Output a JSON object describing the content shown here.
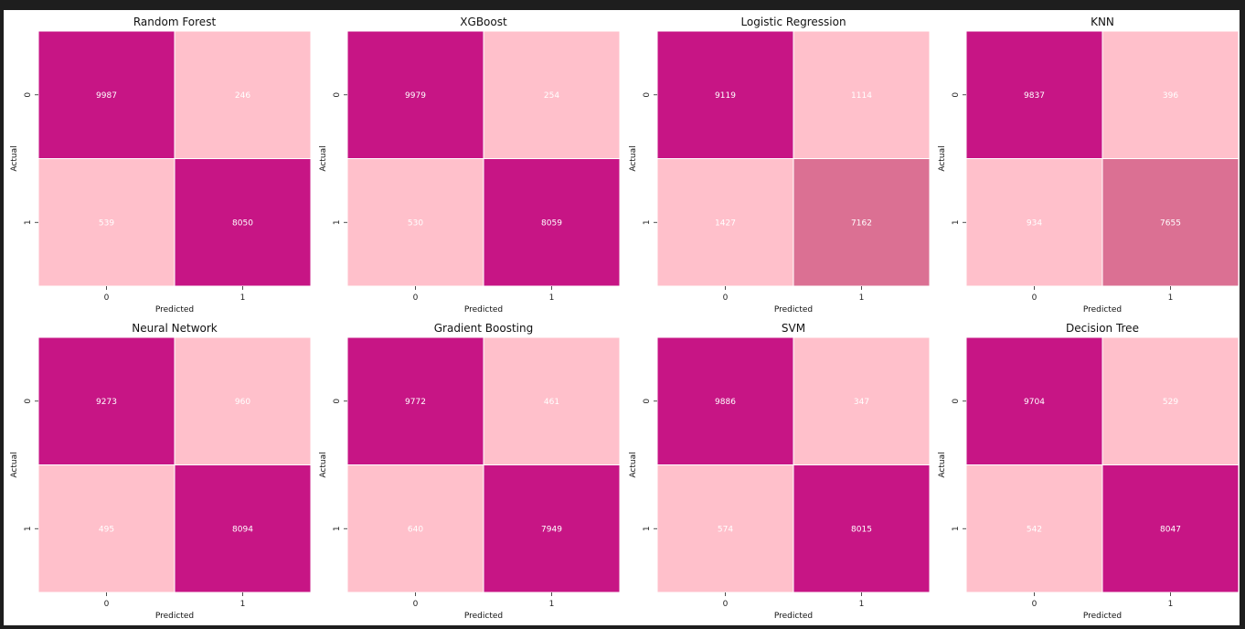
{
  "colors": {
    "dark": "#c71585",
    "light": "#ffc0cb",
    "mid": "#db7093",
    "background": "#ffffff",
    "frame": "#1e1e1e"
  },
  "chart_data": [
    {
      "type": "heatmap",
      "title": "Random Forest",
      "xlabel": "Predicted",
      "ylabel": "Actual",
      "x_ticks": [
        "0",
        "1"
      ],
      "y_ticks": [
        "0",
        "1"
      ],
      "values": [
        [
          9987,
          246
        ],
        [
          539,
          8050
        ]
      ],
      "cell_colors": [
        [
          "#c71585",
          "#ffc0cb"
        ],
        [
          "#ffc0cb",
          "#c71585"
        ]
      ]
    },
    {
      "type": "heatmap",
      "title": "XGBoost",
      "xlabel": "Predicted",
      "ylabel": "Actual",
      "x_ticks": [
        "0",
        "1"
      ],
      "y_ticks": [
        "0",
        "1"
      ],
      "values": [
        [
          9979,
          254
        ],
        [
          530,
          8059
        ]
      ],
      "cell_colors": [
        [
          "#c71585",
          "#ffc0cb"
        ],
        [
          "#ffc0cb",
          "#c71585"
        ]
      ]
    },
    {
      "type": "heatmap",
      "title": "Logistic Regression",
      "xlabel": "Predicted",
      "ylabel": "Actual",
      "x_ticks": [
        "0",
        "1"
      ],
      "y_ticks": [
        "0",
        "1"
      ],
      "values": [
        [
          9119,
          1114
        ],
        [
          1427,
          7162
        ]
      ],
      "cell_colors": [
        [
          "#c71585",
          "#ffc0cb"
        ],
        [
          "#ffc0cb",
          "#db7093"
        ]
      ]
    },
    {
      "type": "heatmap",
      "title": "KNN",
      "xlabel": "Predicted",
      "ylabel": "Actual",
      "x_ticks": [
        "0",
        "1"
      ],
      "y_ticks": [
        "0",
        "1"
      ],
      "values": [
        [
          9837,
          396
        ],
        [
          934,
          7655
        ]
      ],
      "cell_colors": [
        [
          "#c71585",
          "#ffc0cb"
        ],
        [
          "#ffc0cb",
          "#db7093"
        ]
      ]
    },
    {
      "type": "heatmap",
      "title": "Neural Network",
      "xlabel": "Predicted",
      "ylabel": "Actual",
      "x_ticks": [
        "0",
        "1"
      ],
      "y_ticks": [
        "0",
        "1"
      ],
      "values": [
        [
          9273,
          960
        ],
        [
          495,
          8094
        ]
      ],
      "cell_colors": [
        [
          "#c71585",
          "#ffc0cb"
        ],
        [
          "#ffc0cb",
          "#c71585"
        ]
      ]
    },
    {
      "type": "heatmap",
      "title": "Gradient Boosting",
      "xlabel": "Predicted",
      "ylabel": "Actual",
      "x_ticks": [
        "0",
        "1"
      ],
      "y_ticks": [
        "0",
        "1"
      ],
      "values": [
        [
          9772,
          461
        ],
        [
          640,
          7949
        ]
      ],
      "cell_colors": [
        [
          "#c71585",
          "#ffc0cb"
        ],
        [
          "#ffc0cb",
          "#c71585"
        ]
      ]
    },
    {
      "type": "heatmap",
      "title": "SVM",
      "xlabel": "Predicted",
      "ylabel": "Actual",
      "x_ticks": [
        "0",
        "1"
      ],
      "y_ticks": [
        "0",
        "1"
      ],
      "values": [
        [
          9886,
          347
        ],
        [
          574,
          8015
        ]
      ],
      "cell_colors": [
        [
          "#c71585",
          "#ffc0cb"
        ],
        [
          "#ffc0cb",
          "#c71585"
        ]
      ]
    },
    {
      "type": "heatmap",
      "title": "Decision Tree",
      "xlabel": "Predicted",
      "ylabel": "Actual",
      "x_ticks": [
        "0",
        "1"
      ],
      "y_ticks": [
        "0",
        "1"
      ],
      "values": [
        [
          9704,
          529
        ],
        [
          542,
          8047
        ]
      ],
      "cell_colors": [
        [
          "#c71585",
          "#ffc0cb"
        ],
        [
          "#ffc0cb",
          "#c71585"
        ]
      ]
    }
  ]
}
